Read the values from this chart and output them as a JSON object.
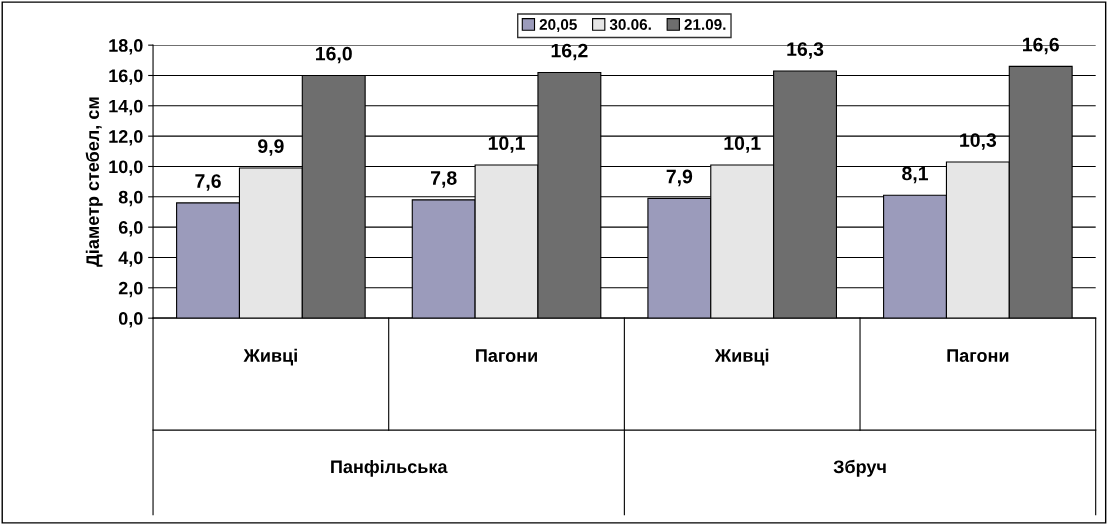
{
  "chart_data": {
    "type": "bar",
    "ylabel": "Діаметр стебел, см",
    "categories": [
      "Живці",
      "Пагони",
      "Живці",
      "Пагони"
    ],
    "series": [
      {
        "name": "20,05",
        "color": "#9b9bbb",
        "values": [
          7.6,
          7.8,
          7.9,
          8.1
        ],
        "value_labels": [
          "7,6",
          "7,8",
          "7,9",
          "8,1"
        ]
      },
      {
        "name": "30.06.",
        "color": "#e6e6e6",
        "values": [
          9.9,
          10.1,
          10.1,
          10.3
        ],
        "value_labels": [
          "9,9",
          "10,1",
          "10,1",
          "10,3"
        ]
      },
      {
        "name": "21.09.",
        "color": "#6e6e6e",
        "values": [
          16.0,
          16.2,
          16.3,
          16.6
        ],
        "value_labels": [
          "16,0",
          "16,2",
          "16,3",
          "16,6"
        ]
      }
    ],
    "annotations": [
      "Панфільська",
      "Збруч"
    ],
    "ylim": [
      0,
      18
    ],
    "yticks": [
      {
        "value": 0,
        "label": "0,0"
      },
      {
        "value": 2,
        "label": "2,0"
      },
      {
        "value": 4,
        "label": "4,0"
      },
      {
        "value": 6,
        "label": "6,0"
      },
      {
        "value": 8,
        "label": "8,0"
      },
      {
        "value": 10,
        "label": "10,0"
      },
      {
        "value": 12,
        "label": "12,0"
      },
      {
        "value": 14,
        "label": "14,0"
      },
      {
        "value": 16,
        "label": "16,0"
      },
      {
        "value": 18,
        "label": "18,0"
      }
    ],
    "grid": "y",
    "legend": "top"
  }
}
